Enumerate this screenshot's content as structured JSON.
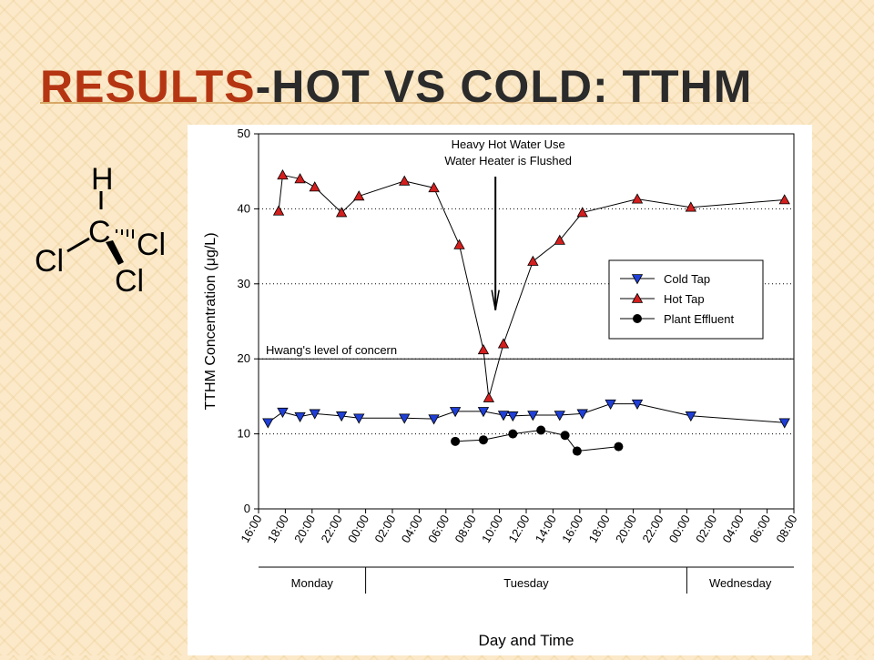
{
  "slide": {
    "title_accent": "Results",
    "title_rest": "-Hot vs Cold: TTHM"
  },
  "molecule": {
    "atoms": [
      "H",
      "C",
      "Cl",
      "Cl",
      "Cl"
    ]
  },
  "chart_data": {
    "type": "line",
    "ylabel_prefix": "TTHM Concentration (",
    "ylabel_unit_symbol": "μ",
    "ylabel_suffix": "g/L)",
    "xlabel": "Day and Time",
    "ylim": [
      0,
      50
    ],
    "yticks": [
      0,
      10,
      20,
      30,
      40,
      50
    ],
    "xlim": [
      0,
      40
    ],
    "x_units": "hours from Monday 16:00",
    "xtick_labels": [
      "16:00",
      "18:00",
      "20:00",
      "22:00",
      "00:00",
      "02:00",
      "04:00",
      "06:00",
      "08:00",
      "10:00",
      "12:00",
      "14:00",
      "16:00",
      "18:00",
      "20:00",
      "22:00",
      "00:00",
      "02:00",
      "04:00",
      "06:00",
      "08:00"
    ],
    "days": [
      {
        "label": "Monday",
        "start": 0,
        "end": 8
      },
      {
        "label": "Tuesday",
        "start": 8,
        "end": 32
      },
      {
        "label": "Wednesday",
        "start": 32,
        "end": 40
      }
    ],
    "grid": {
      "y": "dotted"
    },
    "reference_line": {
      "y": 20,
      "label": "Hwang's level of concern"
    },
    "annotation": {
      "lines": [
        "Heavy Hot Water Use",
        "Water Heater is Flushed"
      ],
      "arrow_x": 17.7,
      "arrow_from_y": 44.3,
      "arrow_to_y": 26.5
    },
    "legend_position": "right-middle",
    "series": [
      {
        "name": "Cold Tap",
        "marker": "triangle-down",
        "color": "#1f3fd6",
        "points": [
          [
            0.7,
            11.5
          ],
          [
            1.8,
            12.9
          ],
          [
            3.1,
            12.3
          ],
          [
            4.2,
            12.7
          ],
          [
            6.2,
            12.4
          ],
          [
            7.5,
            12.1
          ],
          [
            10.9,
            12.1
          ],
          [
            13.1,
            12.0
          ],
          [
            14.7,
            13.0
          ],
          [
            16.8,
            13.0
          ],
          [
            18.3,
            12.5
          ],
          [
            19.0,
            12.4
          ],
          [
            20.5,
            12.5
          ],
          [
            22.5,
            12.5
          ],
          [
            24.2,
            12.7
          ],
          [
            26.3,
            14.0
          ],
          [
            28.3,
            14.0
          ],
          [
            32.3,
            12.4
          ],
          [
            39.3,
            11.5
          ]
        ]
      },
      {
        "name": "Hot Tap",
        "marker": "triangle-up",
        "color": "#d41f1f",
        "points": [
          [
            1.5,
            39.7
          ],
          [
            1.8,
            44.5
          ],
          [
            3.1,
            44.0
          ],
          [
            4.2,
            42.9
          ],
          [
            6.2,
            39.5
          ],
          [
            7.5,
            41.7
          ],
          [
            10.9,
            43.7
          ],
          [
            13.1,
            42.8
          ],
          [
            15.0,
            35.2
          ],
          [
            16.8,
            21.2
          ],
          [
            17.2,
            14.8
          ],
          [
            18.3,
            22.0
          ],
          [
            20.5,
            33.0
          ],
          [
            22.5,
            35.8
          ],
          [
            24.2,
            39.5
          ],
          [
            28.3,
            41.3
          ],
          [
            32.3,
            40.2
          ],
          [
            39.3,
            41.2
          ]
        ]
      },
      {
        "name": "Plant Effluent",
        "marker": "circle",
        "color": "#000000",
        "points": [
          [
            14.7,
            9.0
          ],
          [
            16.8,
            9.2
          ],
          [
            19.0,
            10.0
          ],
          [
            21.1,
            10.5
          ],
          [
            22.9,
            9.8
          ],
          [
            23.8,
            7.7
          ],
          [
            26.9,
            8.3
          ]
        ]
      }
    ]
  }
}
